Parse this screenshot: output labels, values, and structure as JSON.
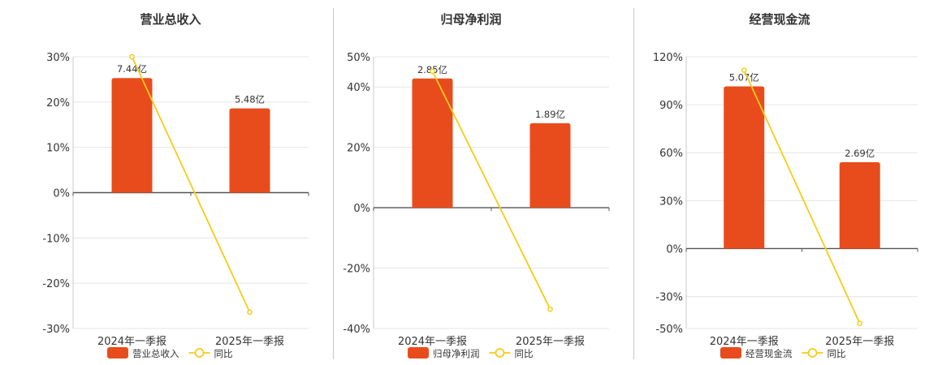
{
  "colors": {
    "bar": "#e84c1c",
    "line": "#f5cc18",
    "grid": "#e5e5e5",
    "axis": "#555555"
  },
  "chart_data": [
    {
      "type": "bar",
      "title": "营业总收入",
      "categories": [
        "2024年一季报",
        "2025年一季报"
      ],
      "ylim": [
        -30,
        30
      ],
      "yticks": [
        "30%",
        "20%",
        "10%",
        "0%",
        "-10%",
        "-20%",
        "-30%"
      ],
      "grid": true,
      "legend_position": "bottom",
      "series": [
        {
          "name": "营业总收入",
          "type": "bar",
          "values": [
            25.3,
            18.6
          ],
          "labels": [
            "7.44亿",
            "5.48亿"
          ]
        },
        {
          "name": "同比",
          "type": "line",
          "values": [
            30.0,
            -26.4
          ]
        }
      ]
    },
    {
      "type": "bar",
      "title": "归母净利润",
      "categories": [
        "2024年一季报",
        "2025年一季报"
      ],
      "ylim": [
        -40,
        50
      ],
      "yticks": [
        "50%",
        "40%",
        "20%",
        "0%",
        "-20%",
        "-40%"
      ],
      "grid": true,
      "legend_position": "bottom",
      "series": [
        {
          "name": "归母净利润",
          "type": "bar",
          "values": [
            42.8,
            28.0
          ],
          "labels": [
            "2.85亿",
            "1.89亿"
          ]
        },
        {
          "name": "同比",
          "type": "line",
          "values": [
            45.2,
            -33.6
          ]
        }
      ]
    },
    {
      "type": "bar",
      "title": "经营现金流",
      "categories": [
        "2024年一季报",
        "2025年一季报"
      ],
      "ylim": [
        -50,
        120
      ],
      "yticks": [
        "120%",
        "90%",
        "60%",
        "30%",
        "0%",
        "-30%",
        "-50%"
      ],
      "grid": true,
      "legend_position": "bottom",
      "series": [
        {
          "name": "经营现金流",
          "type": "bar",
          "values": [
            101.5,
            54.0
          ],
          "labels": [
            "5.07亿",
            "2.69亿"
          ]
        },
        {
          "name": "同比",
          "type": "line",
          "values": [
            111.6,
            -46.8
          ]
        }
      ]
    }
  ]
}
